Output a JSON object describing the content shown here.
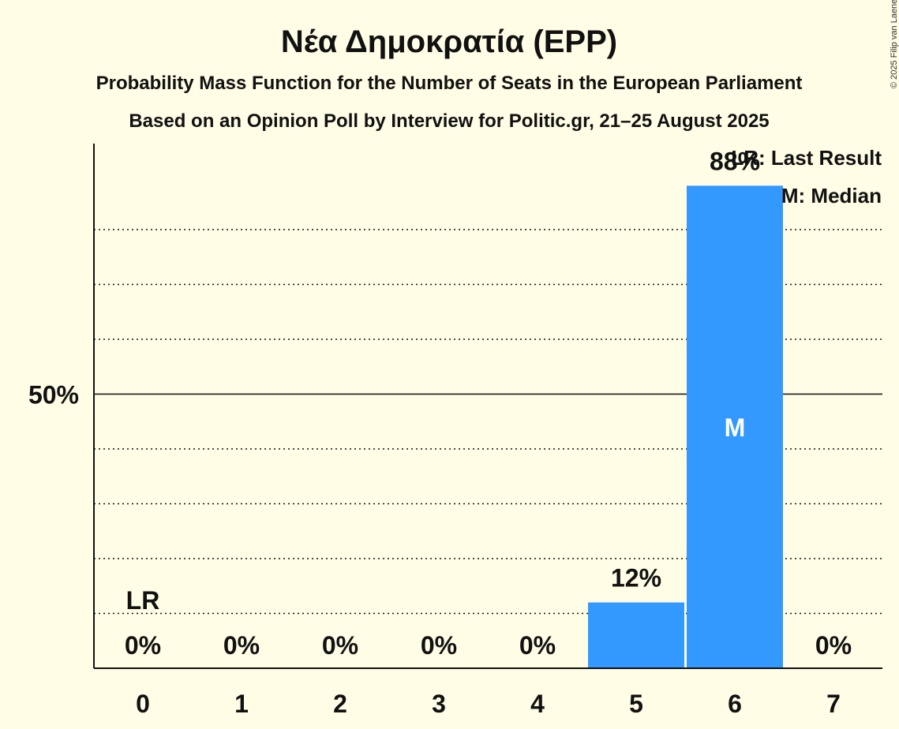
{
  "chart_data": {
    "type": "bar",
    "title": "Νέα Δημοκρατία (EPP)",
    "subtitle": "Probability Mass Function for the Number of Seats in the European Parliament",
    "subtitle2": "Based on an Opinion Poll by Interview for Politic.gr, 21–25 August 2025",
    "copyright": "© 2025 Filip van Laenen",
    "categories": [
      "0",
      "1",
      "2",
      "3",
      "4",
      "5",
      "6",
      "7"
    ],
    "values": [
      0,
      0,
      0,
      0,
      0,
      12,
      88,
      0
    ],
    "value_labels": [
      "0%",
      "0%",
      "0%",
      "0%",
      "0%",
      "12%",
      "88%",
      "0%"
    ],
    "ylim": [
      0,
      96
    ],
    "y_ticks": [
      {
        "value": 50,
        "label": "50%"
      }
    ],
    "gridlines_dotted": [
      10,
      20,
      30,
      40,
      60,
      70,
      80
    ],
    "last_result_index": 0,
    "last_result_marker": "LR",
    "median_index": 6,
    "median_marker": "M",
    "legend": [
      "LR: Last Result",
      "M: Median"
    ],
    "legend_position": "top-right",
    "bar_color": "#3399FF"
  }
}
